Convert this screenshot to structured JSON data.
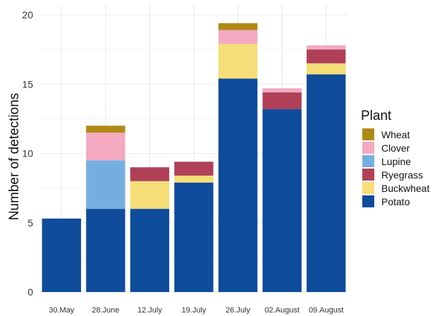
{
  "chart_data": {
    "type": "bar",
    "stacked": true,
    "categories": [
      "30.May",
      "28.June",
      "12.July",
      "19.July",
      "26.July",
      "02.August",
      "09.August"
    ],
    "series": [
      {
        "name": "Potato",
        "color": "#0f4c9c",
        "values": [
          5.3,
          6.0,
          6.0,
          7.9,
          15.4,
          13.2,
          15.7
        ]
      },
      {
        "name": "Buckwheat",
        "color": "#f5dd78",
        "values": [
          0,
          0,
          2.0,
          0.5,
          2.5,
          0,
          0.8
        ]
      },
      {
        "name": "Ryegrass",
        "color": "#b04057",
        "values": [
          0,
          0,
          1.0,
          1.0,
          0,
          1.2,
          1.0
        ]
      },
      {
        "name": "Lupine",
        "color": "#74aee0",
        "values": [
          0,
          3.5,
          0,
          0,
          0,
          0,
          0
        ]
      },
      {
        "name": "Clover",
        "color": "#f4a9c1",
        "values": [
          0,
          2.0,
          0,
          0,
          1.0,
          0.3,
          0.3
        ]
      },
      {
        "name": "Wheat",
        "color": "#b08a17",
        "values": [
          0,
          0.5,
          0,
          0,
          0.5,
          0,
          0
        ]
      }
    ],
    "title": "",
    "xlabel": "",
    "ylabel": "Number of detections",
    "ylim": [
      0,
      20
    ],
    "yticks": [
      0,
      5,
      10,
      15,
      20
    ],
    "grid": true,
    "legend": {
      "title": "Plant",
      "position": "right",
      "order": [
        "Wheat",
        "Clover",
        "Lupine",
        "Ryegrass",
        "Buckwheat",
        "Potato"
      ]
    }
  }
}
